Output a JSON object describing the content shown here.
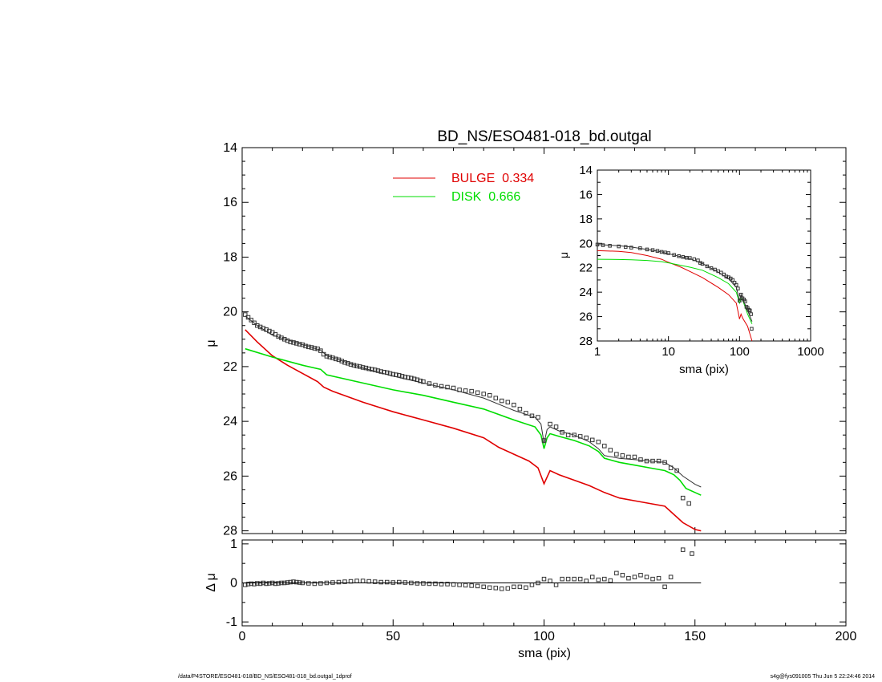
{
  "chart_data": [
    {
      "id": "main",
      "type": "line",
      "title": "BD_NS/ESO481-018_bd.outgal",
      "xlabel": "",
      "ylabel": "μ",
      "xlim": [
        0,
        200
      ],
      "ylim": [
        28.1,
        14
      ],
      "y_inverted": true,
      "xticks": [
        0,
        50,
        100,
        150,
        200
      ],
      "yticks": [
        14,
        16,
        18,
        20,
        22,
        24,
        26,
        28
      ],
      "legend": [
        {
          "label": "BULGE  0.334",
          "color": "#e00000"
        },
        {
          "label": "DISK  0.666",
          "color": "#00dd00"
        }
      ],
      "legend_position": "top-center",
      "series": [
        {
          "name": "BULGE",
          "color": "#e00000",
          "x": [
            1,
            5,
            10,
            15,
            20,
            25,
            27,
            30,
            40,
            50,
            60,
            70,
            80,
            85,
            90,
            95,
            98,
            100,
            102,
            105,
            110,
            115,
            120,
            125,
            130,
            135,
            140,
            143,
            146,
            150,
            152
          ],
          "y": [
            20.65,
            21.1,
            21.6,
            21.95,
            22.25,
            22.55,
            22.75,
            22.9,
            23.3,
            23.65,
            23.95,
            24.25,
            24.6,
            24.95,
            25.2,
            25.45,
            25.7,
            26.28,
            25.8,
            25.95,
            26.15,
            26.35,
            26.6,
            26.8,
            26.9,
            27.0,
            27.1,
            27.4,
            27.7,
            27.95,
            28.0
          ]
        },
        {
          "name": "DISK",
          "color": "#00dd00",
          "x": [
            1,
            10,
            20,
            26,
            28,
            40,
            50,
            60,
            70,
            80,
            90,
            97,
            99,
            100,
            101,
            102,
            105,
            110,
            115,
            118,
            120,
            125,
            130,
            135,
            140,
            143,
            145,
            147,
            150,
            152
          ],
          "y": [
            21.35,
            21.65,
            21.95,
            22.1,
            22.3,
            22.6,
            22.85,
            23.05,
            23.3,
            23.55,
            23.95,
            24.2,
            24.5,
            25.0,
            24.6,
            24.45,
            24.55,
            24.7,
            24.9,
            25.1,
            25.35,
            25.5,
            25.6,
            25.7,
            25.8,
            25.95,
            26.15,
            26.45,
            26.6,
            26.7
          ]
        },
        {
          "name": "TOTAL",
          "color": "#333333",
          "x": [
            1,
            5,
            10,
            20,
            26,
            28,
            40,
            50,
            60,
            70,
            80,
            90,
            97,
            99,
            100,
            101,
            102,
            105,
            110,
            115,
            118,
            120,
            125,
            130,
            135,
            140,
            143,
            146,
            150,
            152
          ],
          "y": [
            20.15,
            20.5,
            20.85,
            21.2,
            21.4,
            21.6,
            22.05,
            22.35,
            22.6,
            22.85,
            23.15,
            23.6,
            23.85,
            24.1,
            24.8,
            24.3,
            24.2,
            24.35,
            24.5,
            24.75,
            25.0,
            25.25,
            25.35,
            25.4,
            25.45,
            25.5,
            25.7,
            26.0,
            26.3,
            26.4
          ]
        },
        {
          "name": "DATA",
          "color": "#333333",
          "marker": "square",
          "x": [
            1,
            2,
            3,
            4,
            5,
            6,
            7,
            8,
            9,
            10,
            11,
            12,
            13,
            14,
            15,
            16,
            17,
            18,
            19,
            20,
            21,
            22,
            23,
            24,
            25,
            26,
            27,
            28,
            29,
            30,
            31,
            32,
            33,
            34,
            35,
            36,
            37,
            38,
            39,
            40,
            41,
            42,
            43,
            44,
            45,
            46,
            47,
            48,
            49,
            50,
            51,
            52,
            53,
            54,
            55,
            56,
            57,
            58,
            59,
            60,
            62,
            64,
            66,
            68,
            70,
            72,
            74,
            76,
            78,
            80,
            82,
            84,
            86,
            88,
            90,
            92,
            94,
            96,
            98,
            100,
            102,
            104,
            106,
            108,
            110,
            112,
            114,
            116,
            118,
            120,
            122,
            124,
            126,
            128,
            130,
            132,
            134,
            136,
            138,
            140,
            142,
            144,
            146,
            148
          ],
          "y": [
            20.1,
            20.2,
            20.3,
            20.4,
            20.5,
            20.55,
            20.6,
            20.65,
            20.7,
            20.75,
            20.82,
            20.9,
            20.95,
            21.0,
            21.05,
            21.1,
            21.12,
            21.15,
            21.18,
            21.2,
            21.25,
            21.28,
            21.3,
            21.33,
            21.35,
            21.42,
            21.55,
            21.62,
            21.65,
            21.68,
            21.72,
            21.75,
            21.8,
            21.85,
            21.88,
            21.92,
            21.95,
            21.98,
            22.0,
            22.03,
            22.05,
            22.08,
            22.1,
            22.12,
            22.15,
            22.18,
            22.2,
            22.22,
            22.25,
            22.28,
            22.3,
            22.32,
            22.35,
            22.38,
            22.4,
            22.42,
            22.45,
            22.48,
            22.52,
            22.55,
            22.62,
            22.68,
            22.72,
            22.75,
            22.78,
            22.85,
            22.88,
            22.9,
            22.95,
            23.0,
            23.05,
            23.15,
            23.25,
            23.3,
            23.4,
            23.55,
            23.7,
            23.8,
            23.85,
            24.7,
            24.1,
            24.2,
            24.4,
            24.5,
            24.5,
            24.55,
            24.6,
            24.68,
            24.75,
            24.9,
            25.05,
            25.2,
            25.25,
            25.3,
            25.3,
            25.4,
            25.45,
            25.45,
            25.45,
            25.5,
            25.7,
            25.8,
            26.8,
            27.0
          ]
        }
      ]
    },
    {
      "id": "residual",
      "type": "scatter",
      "xlabel": "sma (pix)",
      "ylabel": "Δ μ",
      "xlim": [
        0,
        200
      ],
      "ylim": [
        -1.1,
        1.1
      ],
      "xticks": [
        0,
        50,
        100,
        150,
        200
      ],
      "yticks": [
        -1,
        0,
        1
      ],
      "zero_line": true,
      "series": [
        {
          "name": "RESIDUAL",
          "color": "#333333",
          "marker": "square",
          "x": [
            1,
            2,
            3,
            4,
            5,
            6,
            7,
            8,
            9,
            10,
            11,
            12,
            13,
            14,
            15,
            16,
            17,
            18,
            19,
            20,
            22,
            24,
            26,
            28,
            30,
            32,
            34,
            36,
            38,
            40,
            42,
            44,
            46,
            48,
            50,
            52,
            54,
            56,
            58,
            60,
            62,
            64,
            66,
            68,
            70,
            72,
            74,
            76,
            78,
            80,
            82,
            84,
            86,
            88,
            90,
            92,
            94,
            96,
            98,
            100,
            102,
            104,
            106,
            108,
            110,
            112,
            114,
            116,
            118,
            120,
            122,
            124,
            126,
            128,
            130,
            132,
            134,
            136,
            138,
            140,
            142,
            146,
            149
          ],
          "y": [
            -0.05,
            -0.03,
            -0.02,
            -0.03,
            -0.01,
            -0.02,
            0.0,
            -0.02,
            -0.01,
            0.0,
            -0.02,
            -0.01,
            0.0,
            0.0,
            0.01,
            0.02,
            0.03,
            0.02,
            0.01,
            0.0,
            -0.01,
            -0.02,
            -0.01,
            0.0,
            0.01,
            0.02,
            0.03,
            0.04,
            0.05,
            0.05,
            0.04,
            0.03,
            0.02,
            0.02,
            0.01,
            0.02,
            0.01,
            0.0,
            -0.01,
            -0.01,
            -0.02,
            -0.02,
            -0.03,
            -0.03,
            -0.04,
            -0.05,
            -0.06,
            -0.07,
            -0.08,
            -0.1,
            -0.12,
            -0.13,
            -0.15,
            -0.14,
            -0.1,
            -0.1,
            -0.12,
            -0.05,
            0.0,
            0.1,
            0.05,
            -0.05,
            0.1,
            0.1,
            0.1,
            0.1,
            0.05,
            0.15,
            0.08,
            0.1,
            0.06,
            0.25,
            0.2,
            0.12,
            0.15,
            0.2,
            0.15,
            0.1,
            0.12,
            -0.1,
            0.15,
            0.85,
            0.75
          ]
        }
      ]
    },
    {
      "id": "inset",
      "type": "line",
      "xlabel": "sma (pix)",
      "ylabel": "μ",
      "xscale": "log",
      "xlim": [
        1,
        1000
      ],
      "ylim": [
        28,
        14
      ],
      "y_inverted": true,
      "xticks": [
        1,
        10,
        100,
        1000
      ],
      "yticks": [
        14,
        16,
        18,
        20,
        22,
        24,
        26,
        28
      ],
      "series": [
        {
          "name": "BULGE",
          "color": "#e00000",
          "x": [
            1,
            2,
            3,
            5,
            8,
            10,
            15,
            20,
            30,
            50,
            70,
            90,
            100,
            105,
            110,
            130,
            150
          ],
          "y": [
            20.6,
            20.65,
            20.75,
            21.0,
            21.3,
            21.55,
            21.95,
            22.3,
            22.8,
            23.6,
            24.2,
            24.9,
            26.2,
            25.8,
            26.1,
            26.8,
            28.0
          ]
        },
        {
          "name": "DISK",
          "color": "#00dd00",
          "x": [
            1,
            2,
            3,
            5,
            8,
            10,
            15,
            20,
            30,
            50,
            70,
            90,
            100,
            105,
            110,
            130,
            150
          ],
          "y": [
            21.3,
            21.32,
            21.35,
            21.4,
            21.5,
            21.6,
            21.8,
            21.95,
            22.2,
            22.8,
            23.3,
            24.0,
            24.9,
            24.5,
            24.6,
            25.8,
            26.6
          ]
        },
        {
          "name": "TOTAL",
          "color": "#333333",
          "x": [
            1,
            2,
            3,
            5,
            8,
            10,
            15,
            20,
            30,
            50,
            70,
            90,
            100,
            105,
            110,
            130,
            150
          ],
          "y": [
            20.1,
            20.2,
            20.3,
            20.5,
            20.7,
            20.85,
            21.1,
            21.25,
            21.65,
            22.35,
            22.9,
            23.6,
            24.7,
            24.2,
            24.5,
            25.5,
            26.4
          ]
        },
        {
          "name": "DATA",
          "color": "#333333",
          "marker": "square",
          "x": [
            1,
            1.2,
            1.5,
            2,
            2.5,
            3,
            4,
            5,
            6,
            7,
            8,
            9,
            10,
            12,
            14,
            16,
            18,
            20,
            23,
            26,
            28,
            30,
            35,
            40,
            45,
            50,
            55,
            60,
            65,
            70,
            75,
            80,
            85,
            90,
            95,
            100,
            105,
            110,
            115,
            120,
            125,
            130,
            135,
            140,
            145,
            148
          ],
          "y": [
            20.1,
            20.15,
            20.2,
            20.25,
            20.3,
            20.35,
            20.4,
            20.5,
            20.55,
            20.62,
            20.7,
            20.75,
            20.8,
            20.95,
            21.05,
            21.12,
            21.18,
            21.2,
            21.3,
            21.4,
            21.6,
            21.68,
            21.88,
            22.03,
            22.15,
            22.28,
            22.4,
            22.55,
            22.72,
            22.78,
            22.88,
            23.0,
            23.22,
            23.4,
            23.7,
            24.7,
            24.2,
            24.5,
            24.6,
            24.75,
            25.2,
            25.3,
            25.45,
            25.5,
            25.8,
            27.0
          ]
        }
      ]
    }
  ],
  "footer": {
    "left": "/data/P4STORE/ESO481-018/BD_NS/ESO481-018_bd.outgal_1dprof",
    "right": "s4g@fys091005  Thu Jun  5 22:24:46 2014"
  },
  "colors": {
    "bulge": "#e00000",
    "disk": "#00dd00",
    "model": "#333333",
    "axes": "#000000"
  }
}
